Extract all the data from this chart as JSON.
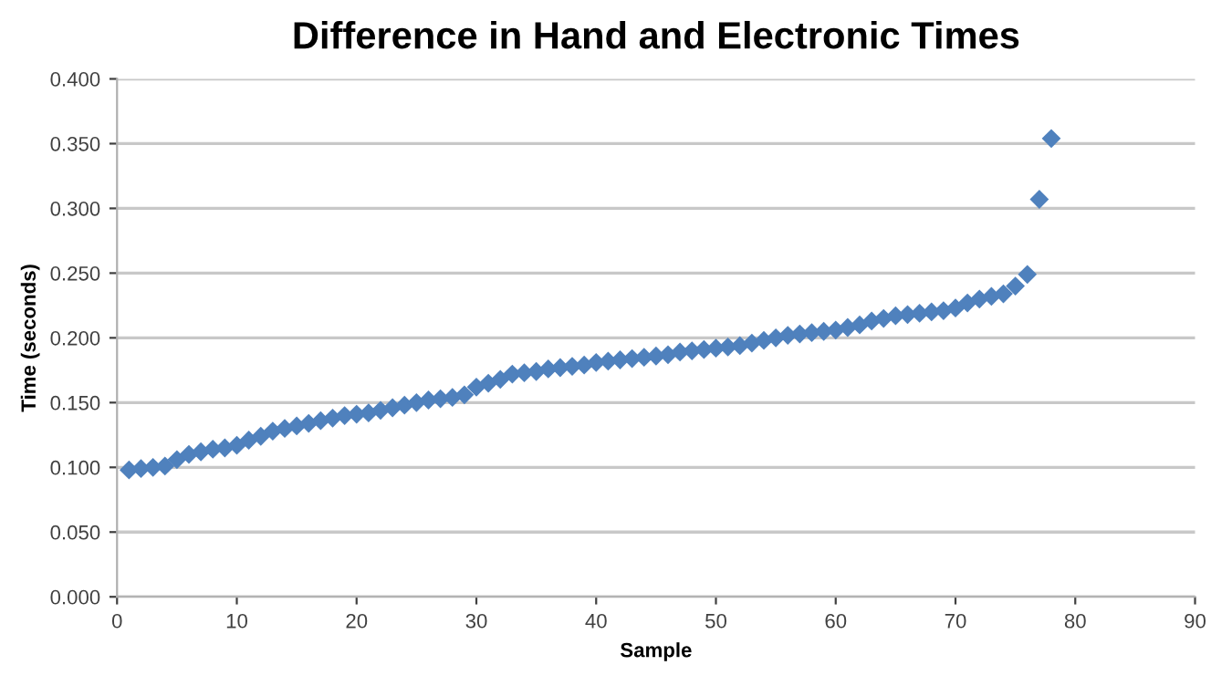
{
  "chart_data": {
    "type": "scatter",
    "title": "Difference in Hand and Electronic Times",
    "xlabel": "Sample",
    "ylabel": "Time (seconds)",
    "x": [
      1,
      2,
      3,
      4,
      5,
      6,
      7,
      8,
      9,
      10,
      11,
      12,
      13,
      14,
      15,
      16,
      17,
      18,
      19,
      20,
      21,
      22,
      23,
      24,
      25,
      26,
      27,
      28,
      29,
      30,
      31,
      32,
      33,
      34,
      35,
      36,
      37,
      38,
      39,
      40,
      41,
      42,
      43,
      44,
      45,
      46,
      47,
      48,
      49,
      50,
      51,
      52,
      53,
      54,
      55,
      56,
      57,
      58,
      59,
      60,
      61,
      62,
      63,
      64,
      65,
      66,
      67,
      68,
      69,
      70,
      71,
      72,
      73,
      74,
      75,
      76,
      77,
      78
    ],
    "series": [
      {
        "color": "#4f81bd",
        "values": [
          0.098,
          0.099,
          0.1,
          0.101,
          0.106,
          0.11,
          0.112,
          0.114,
          0.115,
          0.117,
          0.121,
          0.124,
          0.128,
          0.13,
          0.132,
          0.134,
          0.136,
          0.138,
          0.14,
          0.141,
          0.142,
          0.144,
          0.146,
          0.148,
          0.15,
          0.152,
          0.153,
          0.154,
          0.156,
          0.162,
          0.165,
          0.168,
          0.172,
          0.173,
          0.174,
          0.176,
          0.177,
          0.178,
          0.179,
          0.181,
          0.182,
          0.183,
          0.184,
          0.185,
          0.186,
          0.187,
          0.189,
          0.19,
          0.191,
          0.192,
          0.193,
          0.194,
          0.196,
          0.198,
          0.2,
          0.202,
          0.203,
          0.204,
          0.205,
          0.206,
          0.208,
          0.21,
          0.213,
          0.215,
          0.217,
          0.218,
          0.219,
          0.22,
          0.221,
          0.223,
          0.227,
          0.23,
          0.232,
          0.234,
          0.24,
          0.249,
          0.307,
          0.354
        ]
      }
    ],
    "marker": "diamond",
    "grid": "y",
    "xlim": [
      0,
      90
    ],
    "xticks": [
      0,
      10,
      20,
      30,
      40,
      50,
      60,
      70,
      80,
      90
    ],
    "ylim": [
      0,
      0.4
    ],
    "yticks": [
      {
        "value": 0,
        "label": "0.000"
      },
      {
        "value": 0.05,
        "label": "0.050"
      },
      {
        "value": 0.1,
        "label": "0.100"
      },
      {
        "value": 0.15,
        "label": "0.150"
      },
      {
        "value": 0.2,
        "label": "0.200"
      },
      {
        "value": 0.25,
        "label": "0.250"
      },
      {
        "value": 0.3,
        "label": "0.300"
      },
      {
        "value": 0.35,
        "label": "0.350"
      },
      {
        "value": 0.4,
        "label": "0.400"
      }
    ]
  }
}
